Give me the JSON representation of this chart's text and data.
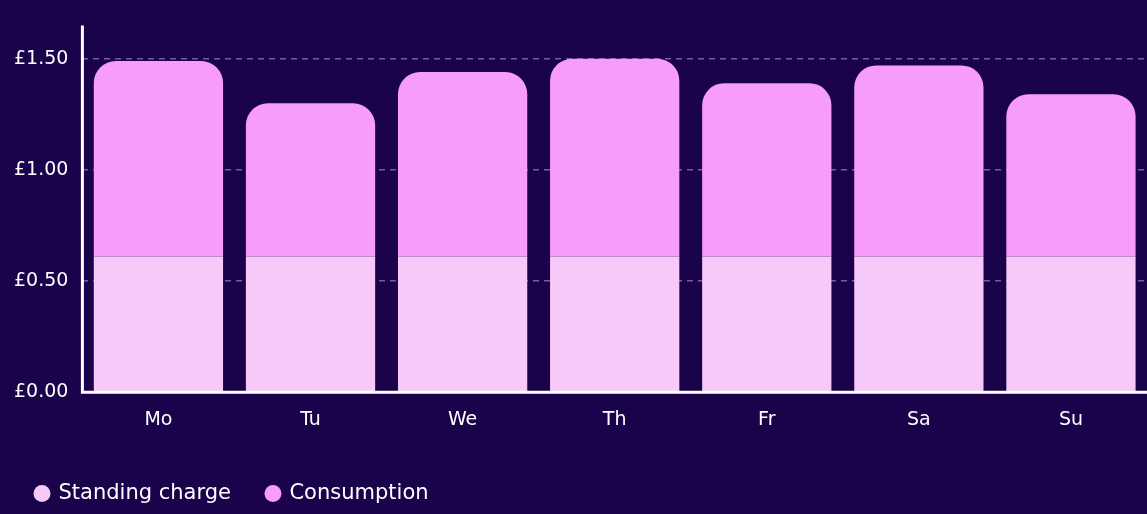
{
  "chart_data": {
    "type": "bar",
    "stacked": true,
    "categories": [
      "Mo",
      "Tu",
      "We",
      "Th",
      "Fr",
      "Sa",
      "Su"
    ],
    "series": [
      {
        "name": "Standing charge",
        "color": "#f6c9f8",
        "values": [
          0.61,
          0.61,
          0.61,
          0.61,
          0.61,
          0.61,
          0.61
        ]
      },
      {
        "name": "Consumption",
        "color": "#f89cfa",
        "values": [
          0.88,
          0.69,
          0.83,
          0.89,
          0.78,
          0.86,
          0.73
        ]
      }
    ],
    "ylim": [
      0,
      1.65
    ],
    "yticks": [
      {
        "value": 0,
        "label": "£0.00"
      },
      {
        "value": 0.5,
        "label": "£0.50"
      },
      {
        "value": 1,
        "label": "£1.00"
      },
      {
        "value": 1.5,
        "label": "£1.50"
      }
    ],
    "grid": "y",
    "legend": "bottom left"
  }
}
